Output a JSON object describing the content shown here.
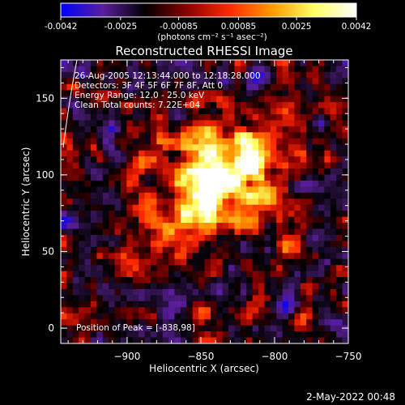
{
  "colorbar": {
    "tick_labels": [
      "-0.0042",
      "-0.0025",
      "-0.00085",
      "0.00085",
      "0.0025",
      "0.0042"
    ],
    "tick_values": [
      -0.0042,
      -0.0025,
      -0.00085,
      0.00085,
      0.0025,
      0.0042
    ],
    "range": [
      -0.0042,
      0.0042
    ],
    "units_label": "(photons cm⁻² s⁻¹ asec⁻²)",
    "colors": [
      "#0000ff",
      "#5a1e9b",
      "#000000",
      "#8b0000",
      "#ff2a00",
      "#ff9900",
      "#ffff66",
      "#ffffff"
    ]
  },
  "chart_data": {
    "type": "heatmap",
    "title": "Reconstructed RHESSI Image",
    "xlabel": "Heliocentric X (arcsec)",
    "ylabel": "Heliocentric Y (arcsec)",
    "xlim": [
      -945,
      -750
    ],
    "ylim": [
      -10,
      175
    ],
    "x_ticks": [
      -900,
      -850,
      -800,
      -750
    ],
    "x_tick_labels": [
      "−900",
      "−850",
      "−800",
      "−750"
    ],
    "y_ticks": [
      0,
      50,
      100,
      150
    ],
    "y_tick_labels": [
      "0",
      "50",
      "100",
      "150"
    ],
    "peak": {
      "x": -838,
      "y": 98
    },
    "annotations": {
      "time": "26-Aug-2005 12:13:44.000 to 12:18:28.000",
      "detectors": "Detectors: 3F 4F 5F 6F 7F 8F, Att 0",
      "energy": "Energy Range: 12.0 - 25.0 keV",
      "clean": "Clean     Total counts: 7.22E+04",
      "peak_label": "Position of Peak = [-838,98]"
    }
  },
  "footer": {
    "date": "2-May-2022 00:48"
  }
}
